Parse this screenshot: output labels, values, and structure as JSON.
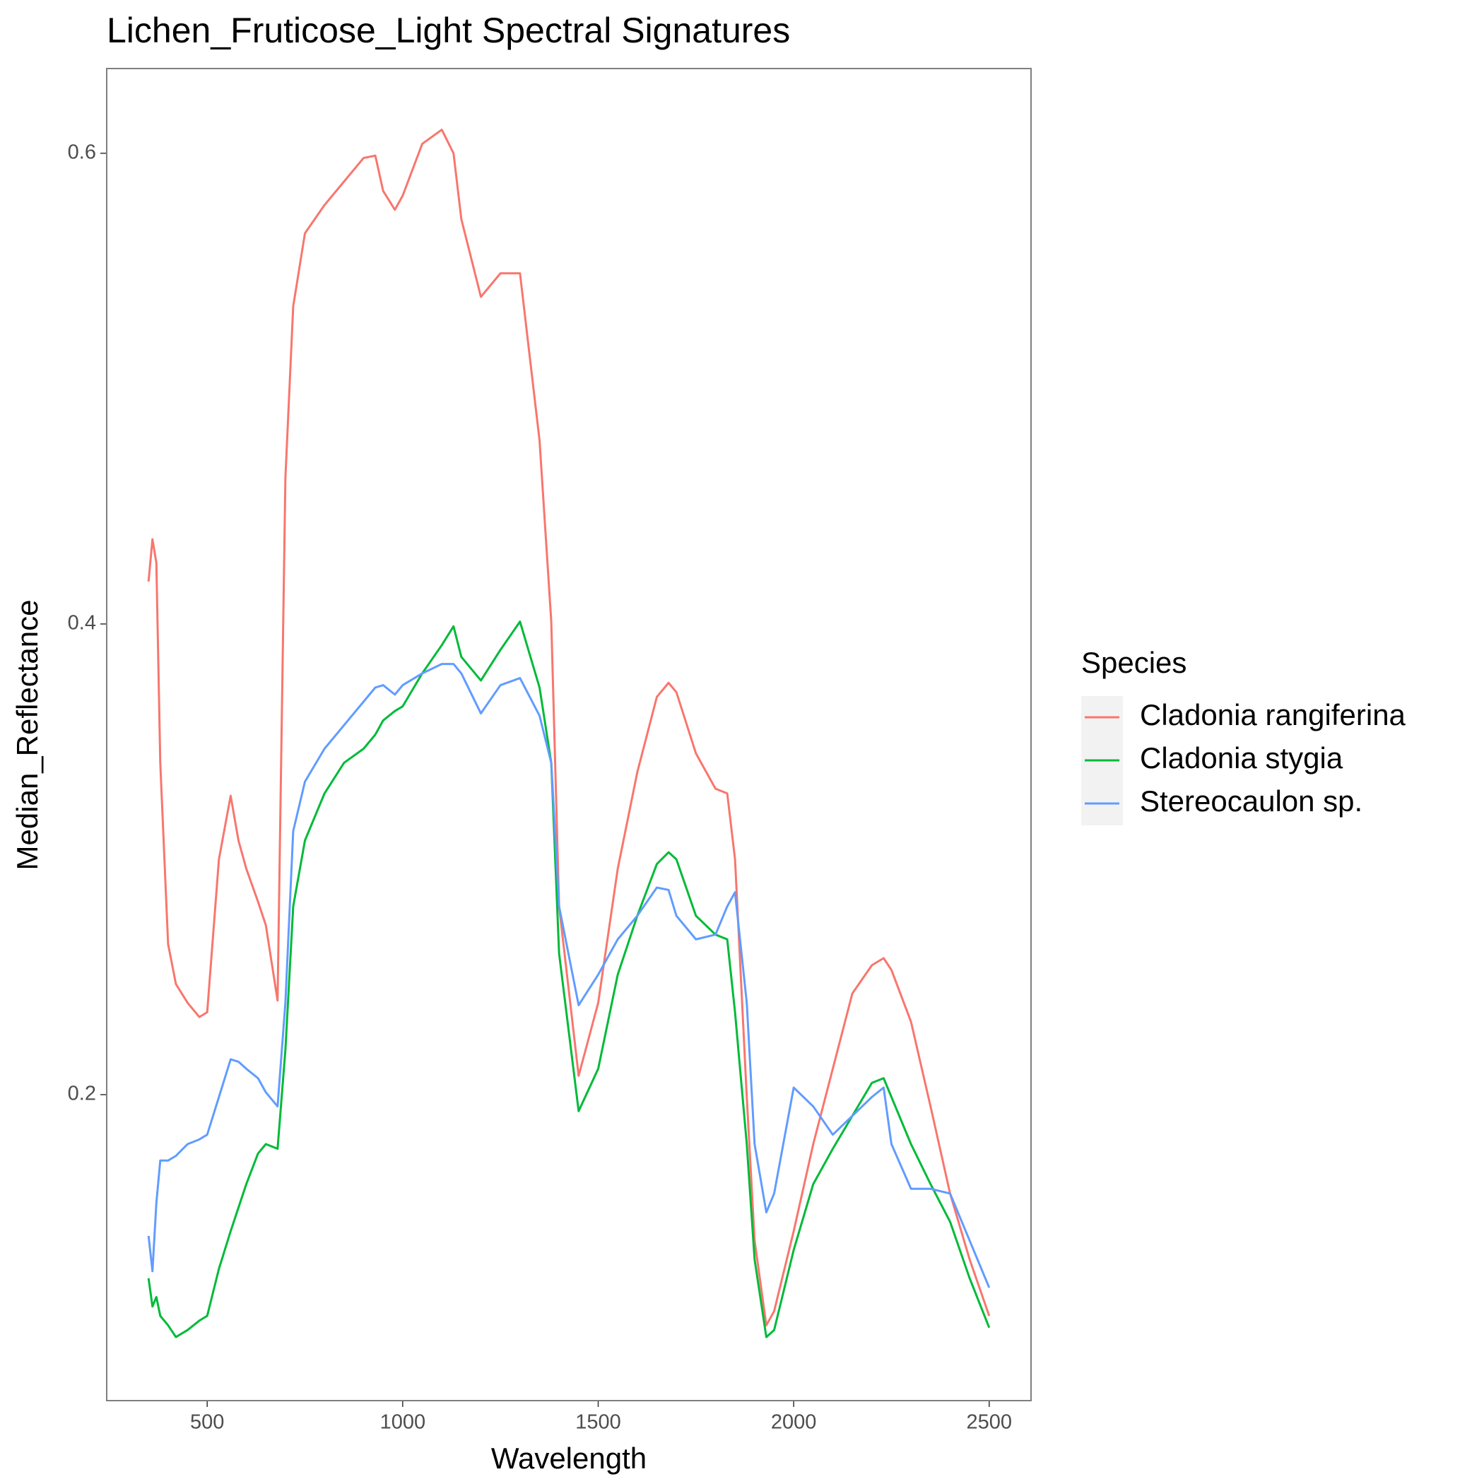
{
  "chart_data": {
    "type": "line",
    "title": "Lichen_Fruticose_Light Spectral Signatures",
    "x_label": "Wavelength",
    "y_label": "Median_Reflectance",
    "legend_title": "Species",
    "legend_position": "right",
    "grid": false,
    "x": [
      350,
      360,
      370,
      380,
      400,
      420,
      450,
      480,
      500,
      530,
      560,
      580,
      600,
      630,
      650,
      680,
      700,
      720,
      750,
      800,
      850,
      900,
      930,
      950,
      980,
      1000,
      1050,
      1100,
      1130,
      1150,
      1200,
      1250,
      1300,
      1350,
      1380,
      1400,
      1450,
      1500,
      1550,
      1600,
      1650,
      1680,
      1700,
      1750,
      1800,
      1830,
      1850,
      1880,
      1900,
      1930,
      1950,
      2000,
      2050,
      2100,
      2150,
      2200,
      2230,
      2250,
      2300,
      2350,
      2400,
      2450,
      2500
    ],
    "series": [
      {
        "name": "Cladonia rangiferina",
        "color": "#F8766D",
        "values": [
          0.418,
          0.436,
          0.426,
          0.341,
          0.264,
          0.247,
          0.239,
          0.233,
          0.235,
          0.3,
          0.327,
          0.308,
          0.296,
          0.282,
          0.272,
          0.24,
          0.462,
          0.535,
          0.566,
          0.578,
          0.588,
          0.598,
          0.599,
          0.584,
          0.576,
          0.582,
          0.604,
          0.61,
          0.6,
          0.572,
          0.539,
          0.549,
          0.549,
          0.478,
          0.401,
          0.28,
          0.208,
          0.239,
          0.296,
          0.337,
          0.369,
          0.375,
          0.371,
          0.345,
          0.33,
          0.328,
          0.3,
          0.199,
          0.138,
          0.102,
          0.108,
          0.142,
          0.179,
          0.211,
          0.243,
          0.255,
          0.258,
          0.253,
          0.231,
          0.195,
          0.158,
          0.13,
          0.106
        ]
      },
      {
        "name": "Cladonia stygia",
        "color": "#00BA38",
        "values": [
          0.122,
          0.11,
          0.114,
          0.106,
          0.102,
          0.097,
          0.1,
          0.104,
          0.106,
          0.126,
          0.142,
          0.152,
          0.162,
          0.175,
          0.179,
          0.177,
          0.219,
          0.28,
          0.308,
          0.328,
          0.341,
          0.347,
          0.353,
          0.359,
          0.363,
          0.365,
          0.379,
          0.391,
          0.399,
          0.386,
          0.376,
          0.389,
          0.401,
          0.373,
          0.341,
          0.26,
          0.193,
          0.211,
          0.251,
          0.276,
          0.298,
          0.303,
          0.3,
          0.276,
          0.268,
          0.266,
          0.235,
          0.179,
          0.13,
          0.097,
          0.1,
          0.134,
          0.162,
          0.177,
          0.191,
          0.205,
          0.207,
          0.199,
          0.179,
          0.162,
          0.146,
          0.122,
          0.101
        ]
      },
      {
        "name": "Stereocaulon sp.",
        "color": "#619CFF",
        "values": [
          0.14,
          0.125,
          0.154,
          0.172,
          0.172,
          0.174,
          0.179,
          0.181,
          0.183,
          0.199,
          0.215,
          0.214,
          0.211,
          0.207,
          0.201,
          0.195,
          0.239,
          0.312,
          0.333,
          0.347,
          0.357,
          0.367,
          0.373,
          0.374,
          0.37,
          0.374,
          0.379,
          0.383,
          0.383,
          0.379,
          0.362,
          0.374,
          0.377,
          0.361,
          0.341,
          0.28,
          0.238,
          0.251,
          0.266,
          0.276,
          0.288,
          0.287,
          0.276,
          0.266,
          0.268,
          0.28,
          0.286,
          0.239,
          0.179,
          0.15,
          0.158,
          0.203,
          0.195,
          0.183,
          0.191,
          0.199,
          0.203,
          0.179,
          0.16,
          0.16,
          0.158,
          0.138,
          0.118
        ]
      }
    ],
    "xlim": [
      243,
      2607
    ],
    "ylim": [
      0.07,
      0.636
    ],
    "xticks": [
      500,
      1000,
      1500,
      2000,
      2500
    ],
    "yticks": [
      0.2,
      0.4,
      0.6
    ]
  }
}
